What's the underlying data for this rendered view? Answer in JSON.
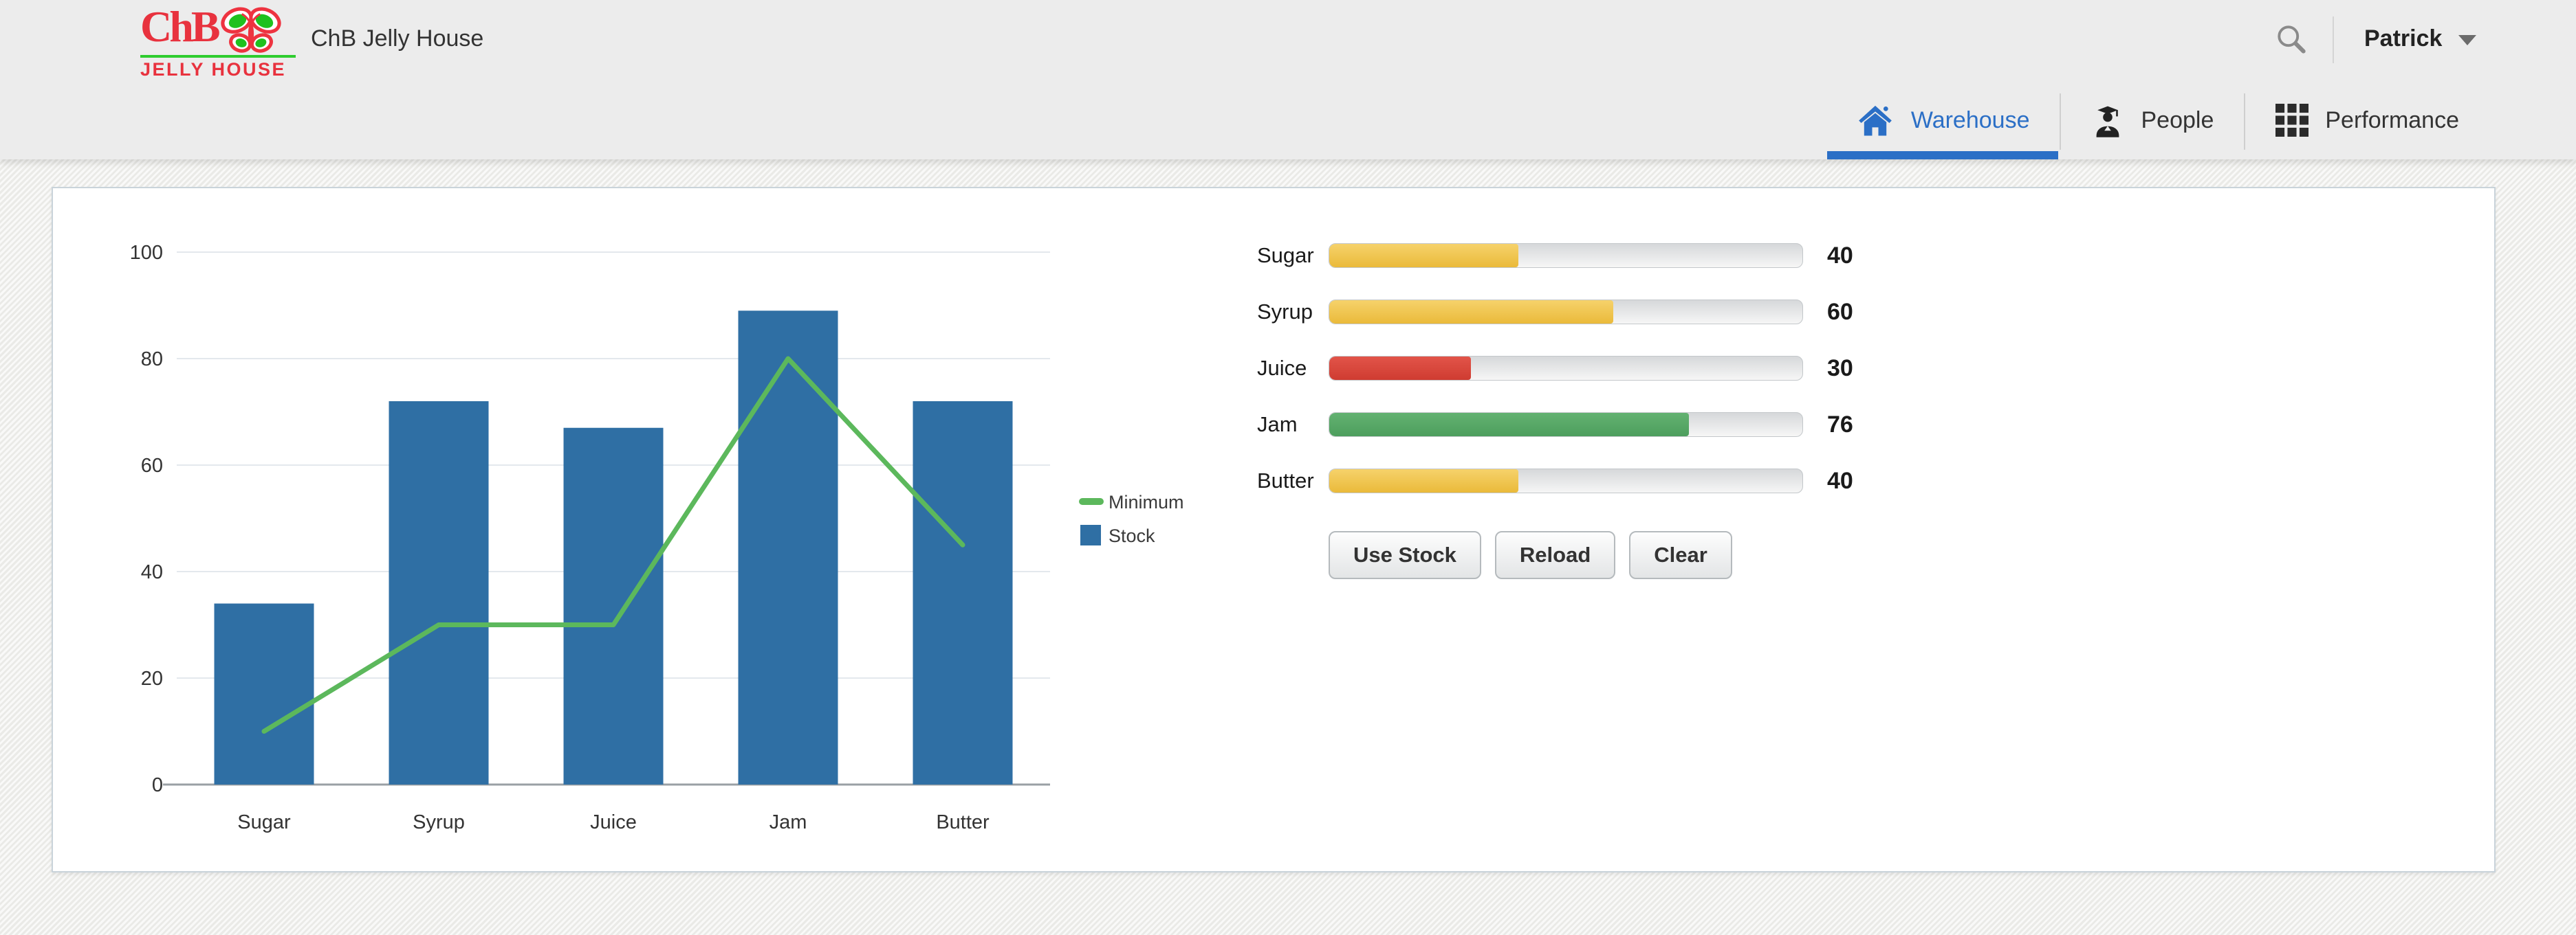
{
  "header": {
    "logo": {
      "monogram": "ChB",
      "subtitle": "JELLY HOUSE"
    },
    "app_title": "ChB Jelly House",
    "user_name": "Patrick"
  },
  "nav": {
    "tabs": [
      {
        "label": "Warehouse",
        "active": true
      },
      {
        "label": "People",
        "active": false
      },
      {
        "label": "Performance",
        "active": false
      }
    ]
  },
  "chart_data": {
    "type": "bar",
    "title": "",
    "categories": [
      "Sugar",
      "Syrup",
      "Juice",
      "Jam",
      "Butter"
    ],
    "series": [
      {
        "name": "Minimum",
        "type": "line",
        "color": "#5CB85C",
        "values": [
          10,
          30,
          30,
          80,
          45
        ]
      },
      {
        "name": "Stock",
        "type": "bar",
        "color": "#2F6FA4",
        "values": [
          34,
          72,
          67,
          89,
          72
        ]
      }
    ],
    "xlabel": "",
    "ylabel": "",
    "ylim": [
      0,
      100
    ],
    "yticks": [
      0,
      20,
      40,
      60,
      80,
      100
    ],
    "grid": true,
    "legend_position": "right"
  },
  "inventory": {
    "max": 100,
    "rows": [
      {
        "name": "Sugar",
        "value": 40,
        "tone": "yellow"
      },
      {
        "name": "Syrup",
        "value": 60,
        "tone": "yellow"
      },
      {
        "name": "Juice",
        "value": 30,
        "tone": "red"
      },
      {
        "name": "Jam",
        "value": 76,
        "tone": "green"
      },
      {
        "name": "Butter",
        "value": 40,
        "tone": "yellow"
      }
    ],
    "buttons": [
      "Use Stock",
      "Reload",
      "Clear"
    ]
  },
  "colors": {
    "accent_blue": "#2B6FC6",
    "bar_blue": "#2F6FA4",
    "line_green": "#5CB85C",
    "logo_red": "#E8323E",
    "logo_green": "#2ECC2E"
  }
}
